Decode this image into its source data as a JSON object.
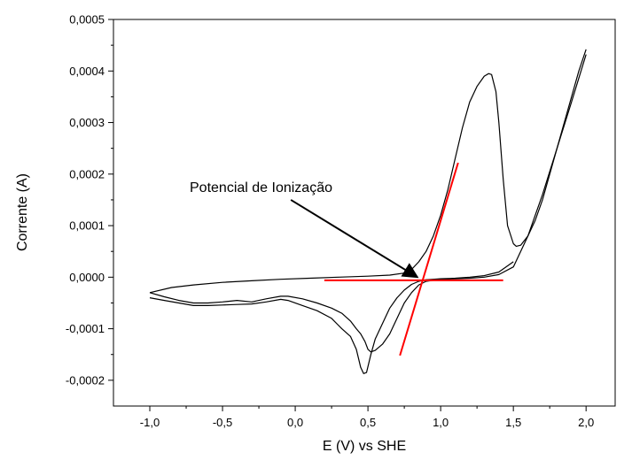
{
  "chart_data": {
    "type": "line",
    "title": "",
    "xlabel": "E (V) vs SHE",
    "ylabel": "Corrente (A)",
    "xlim": [
      -1.25,
      2.2
    ],
    "ylim": [
      -0.00025,
      0.0005
    ],
    "x_ticks": [
      {
        "value": -1.0,
        "label": "-1,0"
      },
      {
        "value": -0.5,
        "label": "-0,5"
      },
      {
        "value": 0.0,
        "label": "0,0"
      },
      {
        "value": 0.5,
        "label": "0,5"
      },
      {
        "value": 1.0,
        "label": "1,0"
      },
      {
        "value": 1.5,
        "label": "1,5"
      },
      {
        "value": 2.0,
        "label": "2,0"
      }
    ],
    "y_ticks": [
      {
        "value": -0.0002,
        "label": "-0,0002"
      },
      {
        "value": -0.0001,
        "label": "-0,0001"
      },
      {
        "value": 0.0,
        "label": "0,0000"
      },
      {
        "value": 0.0001,
        "label": "0,0001"
      },
      {
        "value": 0.0002,
        "label": "0,0002"
      },
      {
        "value": 0.0003,
        "label": "0,0003"
      },
      {
        "value": 0.0004,
        "label": "0,0004"
      },
      {
        "value": 0.0005,
        "label": "0,0005"
      }
    ],
    "grid": false,
    "series": [
      {
        "color": "#000000",
        "x": [
          -1.0,
          -0.85,
          -0.7,
          -0.5,
          -0.3,
          -0.1,
          0.1,
          0.3,
          0.5,
          0.65,
          0.75,
          0.8,
          0.85,
          0.9,
          0.95,
          1.0,
          1.05,
          1.1,
          1.15,
          1.2,
          1.25,
          1.3,
          1.33,
          1.35,
          1.38,
          1.4,
          1.43,
          1.46,
          1.5,
          1.52,
          1.55,
          1.6,
          1.65,
          1.7,
          1.75,
          1.8,
          1.85,
          1.9,
          1.95,
          2.0
        ],
        "y": [
          -3e-05,
          -2e-05,
          -1.5e-05,
          -1e-05,
          -7e-06,
          -4e-06,
          -2e-06,
          0.0,
          2e-06,
          4e-06,
          8e-06,
          1.5e-05,
          3e-05,
          5e-05,
          8e-05,
          0.00012,
          0.00017,
          0.00023,
          0.00029,
          0.00034,
          0.00037,
          0.00039,
          0.000395,
          0.000393,
          0.00036,
          0.0003,
          0.00019,
          0.0001,
          6.5e-05,
          6e-05,
          6.2e-05,
          8e-05,
          0.00011,
          0.00015,
          0.0002,
          0.00025,
          0.0003,
          0.00035,
          0.0004,
          0.000442
        ]
      },
      {
        "color": "#000000",
        "x": [
          2.0,
          1.9,
          1.8,
          1.7,
          1.6,
          1.5,
          1.4,
          1.3,
          1.2,
          1.1,
          1.0,
          0.9,
          0.85,
          0.8,
          0.75,
          0.7,
          0.65,
          0.6,
          0.55,
          0.52,
          0.5,
          0.48,
          0.45,
          0.42,
          0.38,
          0.32,
          0.25,
          0.15,
          0.05,
          -0.05,
          -0.1,
          -0.2,
          -0.3,
          -0.4,
          -0.5,
          -0.6,
          -0.7,
          -0.8,
          -0.9,
          -1.0
        ],
        "y": [
          0.000432,
          0.00034,
          0.00025,
          0.00016,
          8e-05,
          2e-05,
          5e-06,
          0.0,
          -2e-06,
          -3e-06,
          -4e-06,
          -8e-06,
          -1.5e-05,
          -3e-05,
          -5e-05,
          -8e-05,
          -0.00011,
          -0.00013,
          -0.000142,
          -0.000145,
          -0.00014,
          -0.000125,
          -0.00011,
          -0.0001,
          -8.5e-05,
          -7e-05,
          -6e-05,
          -5e-05,
          -4.2e-05,
          -3.7e-05,
          -3.7e-05,
          -4.2e-05,
          -4.8e-05,
          -4.5e-05,
          -4.8e-05,
          -5e-05,
          -5e-05,
          -4.5e-05,
          -3.8e-05,
          -3e-05
        ]
      },
      {
        "color": "#000000",
        "x": [
          -1.0,
          -0.9,
          -0.8,
          -0.7,
          -0.6,
          -0.5,
          -0.4,
          -0.3,
          -0.2,
          -0.1,
          -0.05,
          0.05,
          0.15,
          0.25,
          0.32,
          0.38,
          0.42,
          0.45,
          0.47,
          0.49,
          0.52,
          0.55,
          0.6,
          0.65,
          0.7,
          0.75,
          0.8,
          0.85,
          0.9,
          0.95,
          1.0,
          1.1,
          1.2,
          1.3,
          1.4,
          1.5
        ],
        "y": [
          -4e-05,
          -4.5e-05,
          -5e-05,
          -5.5e-05,
          -5.5e-05,
          -5.4e-05,
          -5.3e-05,
          -5.2e-05,
          -4.8e-05,
          -4.3e-05,
          -4.5e-05,
          -5.5e-05,
          -6.5e-05,
          -8e-05,
          -0.0001,
          -0.000115,
          -0.00014,
          -0.000175,
          -0.000187,
          -0.000185,
          -0.00015,
          -0.00012,
          -9e-05,
          -6e-05,
          -4e-05,
          -2.5e-05,
          -1.4e-05,
          -8e-06,
          -5e-06,
          -4e-06,
          -3e-06,
          -2e-06,
          0.0,
          3e-06,
          1e-05,
          3e-05
        ]
      }
    ],
    "annotations": {
      "text": "Potencial de Ionização",
      "arrow_from": [
        -0.03,
        0.00015
      ],
      "arrow_to": [
        0.84,
        0.0
      ],
      "arrow_color": "#000000",
      "tangent_lines": [
        {
          "x": [
            0.2,
            1.43
          ],
          "y": [
            -6e-06,
            -6e-06
          ],
          "color": "#ff0000"
        },
        {
          "x": [
            0.72,
            1.12
          ],
          "y": [
            -0.000152,
            0.000222
          ],
          "color": "#ff0000"
        }
      ]
    }
  }
}
